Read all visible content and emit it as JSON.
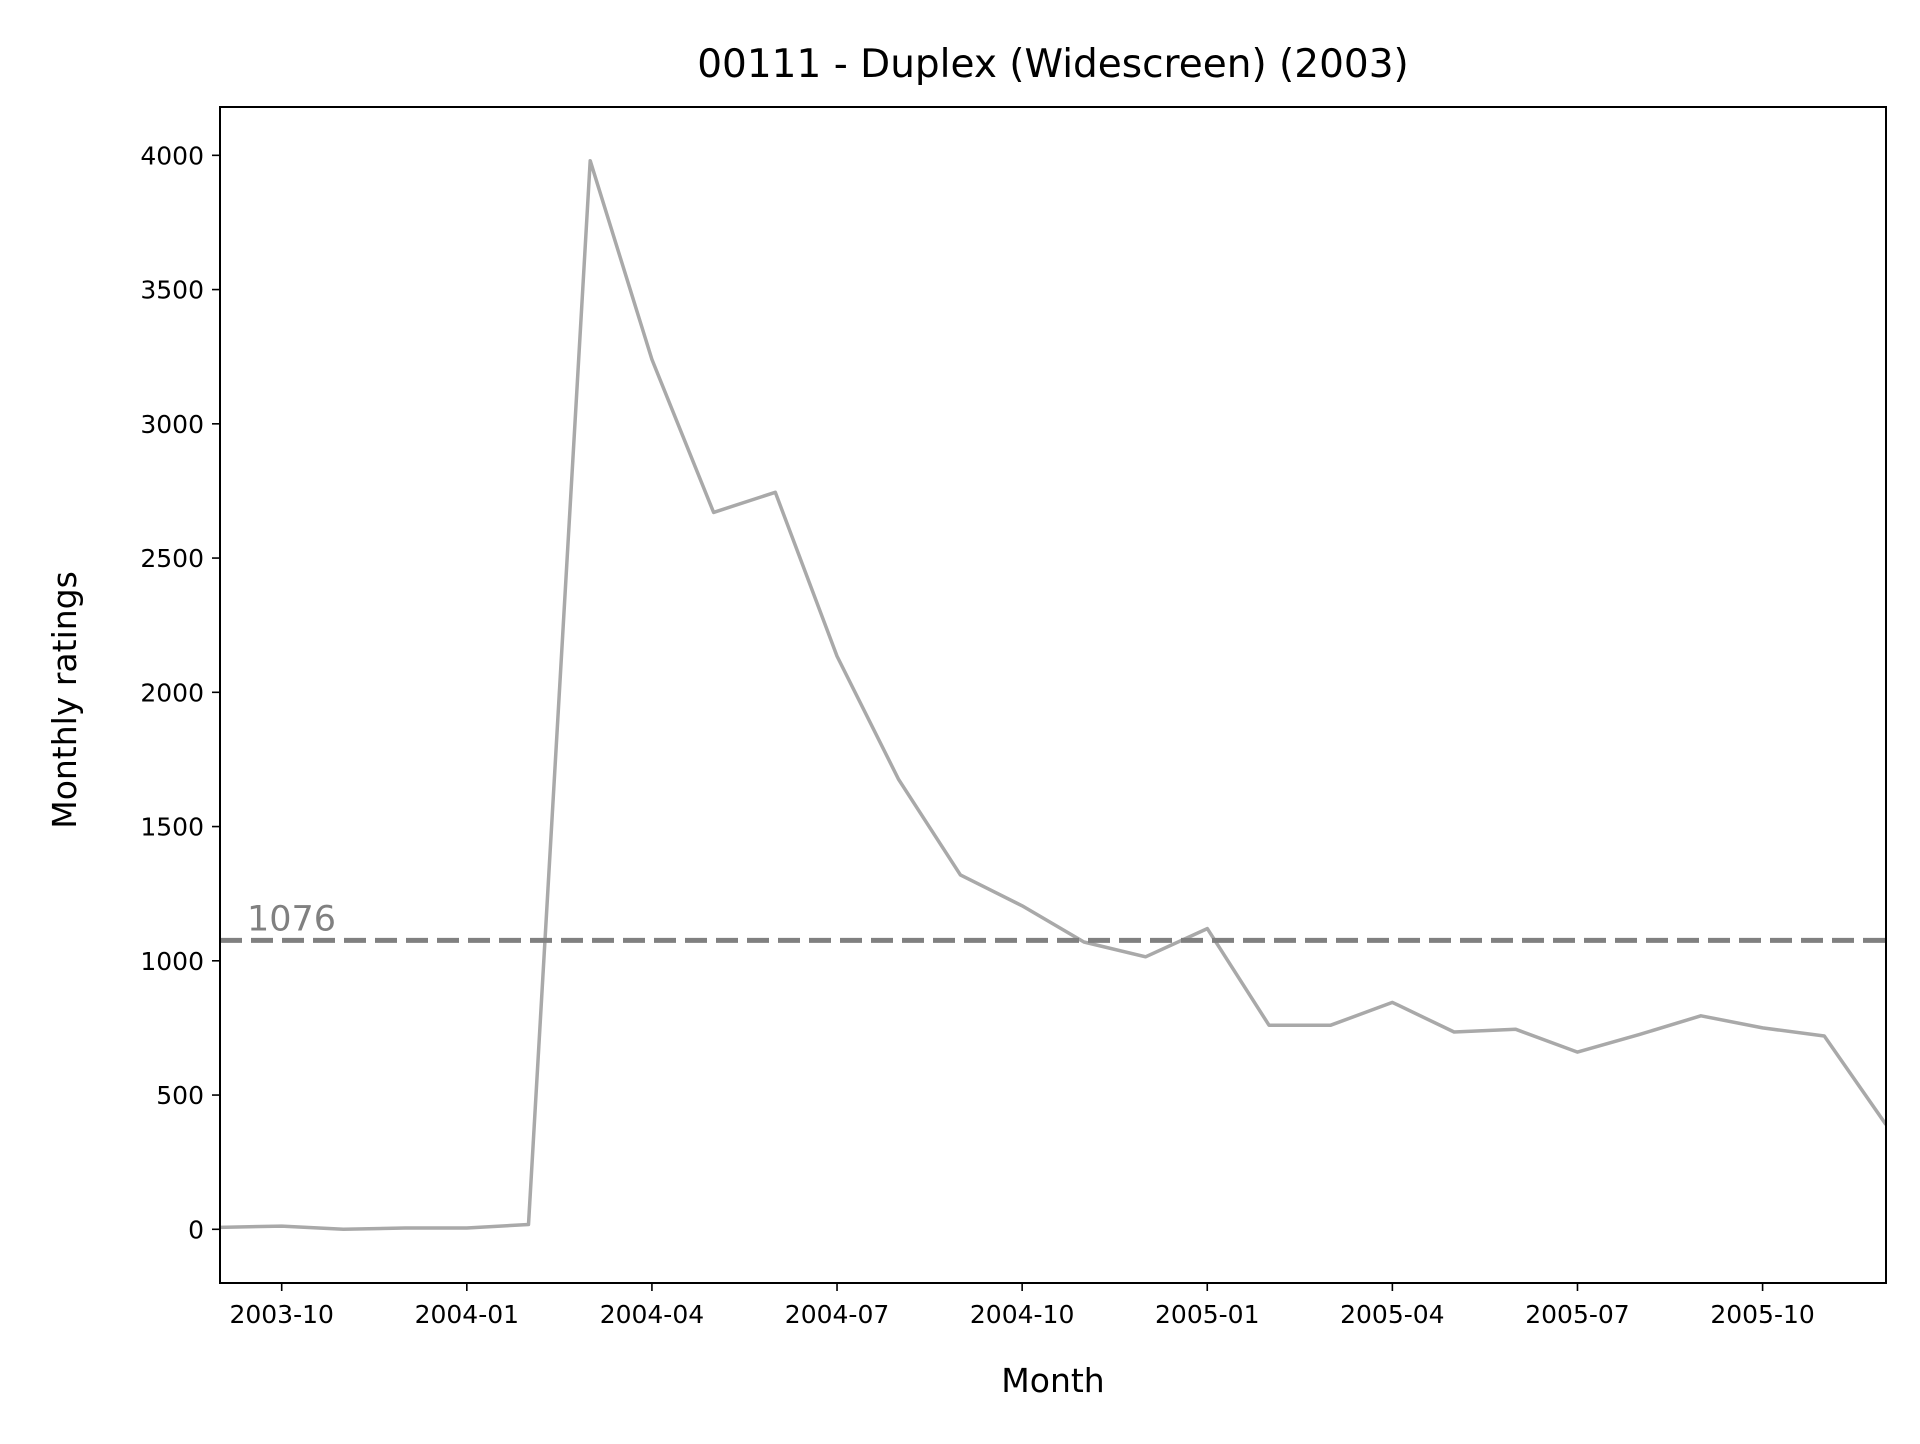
{
  "chart_data": {
    "type": "line",
    "title": "00111 - Duplex (Widescreen) (2003)",
    "xlabel": "Month",
    "ylabel": "Monthly ratings",
    "x_range": [
      "2003-09",
      "2005-12"
    ],
    "ylim": [
      -200,
      4180
    ],
    "y_ticks": [
      0,
      500,
      1000,
      1500,
      2000,
      2500,
      3000,
      3500,
      4000
    ],
    "x_ticks": [
      "2003-10",
      "2004-01",
      "2004-04",
      "2004-07",
      "2004-10",
      "2005-01",
      "2005-04",
      "2005-07",
      "2005-10"
    ],
    "grid": false,
    "legend": "none",
    "series": [
      {
        "color": "#a9a9a9",
        "x": [
          "2003-09",
          "2003-10",
          "2003-11",
          "2003-12",
          "2004-01",
          "2004-02",
          "2004-03",
          "2004-04",
          "2004-05",
          "2004-06",
          "2004-07",
          "2004-08",
          "2004-09",
          "2004-10",
          "2004-11",
          "2004-12",
          "2005-01",
          "2005-02",
          "2005-03",
          "2005-04",
          "2005-05",
          "2005-06",
          "2005-07",
          "2005-08",
          "2005-09",
          "2005-10",
          "2005-11",
          "2005-12"
        ],
        "values": [
          7,
          12,
          0,
          5,
          5,
          18,
          3980,
          3240,
          2670,
          2745,
          2135,
          1675,
          1320,
          1205,
          1070,
          1015,
          1120,
          760,
          760,
          845,
          735,
          745,
          660,
          725,
          795,
          750,
          720,
          390
        ]
      }
    ],
    "reference_line": {
      "value": 1076,
      "label": "1076",
      "color": "#808080",
      "style": "dashed"
    }
  }
}
